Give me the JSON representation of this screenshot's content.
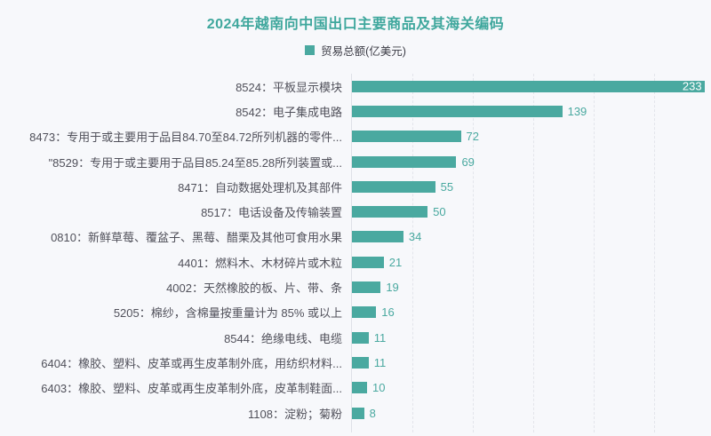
{
  "page": {
    "background_color": "#F7F8FB"
  },
  "header": {
    "title": "2024年越南向中国出口主要商品及其海关编码",
    "title_color": "#3FA79D"
  },
  "legend": {
    "label": "贸易总额(亿美元)",
    "swatch_color": "#4AA9A0"
  },
  "chart_data": {
    "type": "bar",
    "orientation": "horizontal",
    "title": "2024年越南向中国出口主要商品及其海关编码",
    "legend_entries": [
      "贸易总额(亿美元)"
    ],
    "legend_position": "top",
    "grid": true,
    "bar_color": "#4AA9A0",
    "value_label_color": "#4AA9A0",
    "first_bar_value_label_color": "#FFFFFF",
    "xlim": [
      0,
      235
    ],
    "gridlines_x": [
      40,
      80,
      120,
      160,
      200
    ],
    "categories": [
      "8524：平板显示模块",
      "8542：电子集成电路",
      "8473：专用于或主要用于品目84.70至84.72所列机器的零件...",
      "\"8529：专用于或主要用于品目85.24至85.28所列装置或...",
      "8471：自动数据处理机及其部件",
      "8517：电话设备及传输装置",
      "0810：新鲜草莓、覆盆子、黑莓、醋栗及其他可食用水果",
      "4401：燃料木、木材碎片或木粒",
      "4002：天然橡胶的板、片、带、条",
      "5205：棉纱，含棉量按重量计为 85% 或以上",
      "8544：绝缘电线、电缆",
      "6404：橡胶、塑料、皮革或再生皮革制外底，用纺织材料...",
      "6403：橡胶、塑料、皮革或再生皮革制外底，皮革制鞋面...",
      "1108：淀粉；菊粉"
    ],
    "values": [
      233,
      139,
      72,
      69,
      55,
      50,
      34,
      21,
      19,
      16,
      11,
      11,
      10,
      8
    ]
  }
}
